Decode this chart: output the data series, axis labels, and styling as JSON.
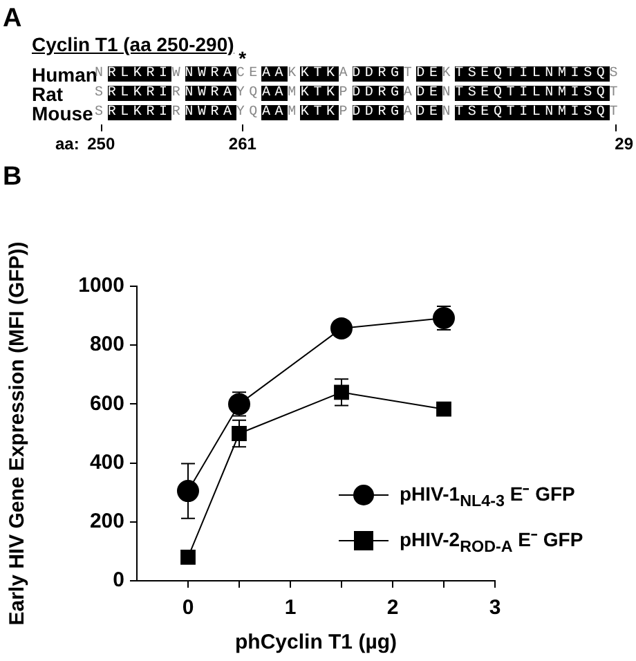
{
  "chart_data": [
    {
      "type": "other",
      "title": "Cyclin T1 (aa 250-290)",
      "annotations": [
        "A",
        "*",
        "Human",
        "Rat",
        "Mouse",
        "NRLKRIWNWRACEAAKKTKADDRGTDEKTSEQTILNMISQS",
        "SRLKRIRNWRAYQAAMKTKPDDRGADENTSEQTILNMISQT",
        "SRLKRIRNWRAYQAAMKTKPDDRGADENTSEQTILNMISQT",
        "aa:",
        "250",
        "261",
        "29"
      ]
    },
    {
      "type": "line",
      "title": "B",
      "xlabel": "phCyclin T1 (µg)",
      "ylabel": "Early HIV Gene Expression (MFI (GFP))",
      "x": [
        0,
        0.5,
        1.5,
        2.5
      ],
      "series": [
        {
          "name": "pHIV-1$_{NL4-3}$ E⁻ GFP",
          "color": "#000000",
          "marker": "circle",
          "values": [
            305,
            600,
            857,
            892
          ],
          "errors": [
            93,
            40,
            null,
            40
          ]
        },
        {
          "name": "pHIV-2$_{ROD-A}$ E⁻ GFP",
          "color": "#000000",
          "marker": "square",
          "values": [
            80,
            500,
            640,
            583
          ],
          "errors": [
            null,
            45,
            45,
            null
          ]
        }
      ],
      "xlim": [
        -0.5,
        3
      ],
      "xticks": [
        0,
        {
          "value": 0.5,
          "label": null
        },
        1,
        {
          "value": 1.5,
          "label": null
        },
        2,
        {
          "value": 2.5,
          "label": null
        },
        3
      ],
      "ylim": [
        0,
        1000
      ],
      "yticks": [
        0,
        200,
        400,
        600,
        800,
        1000
      ],
      "grid": false,
      "legend": "bottom right"
    }
  ]
}
